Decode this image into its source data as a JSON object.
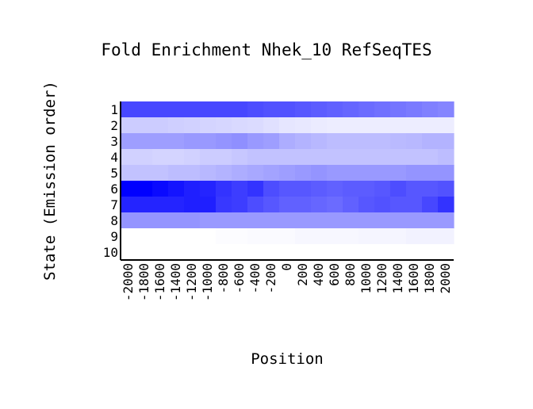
{
  "chart_data": {
    "type": "heatmap",
    "title": "Fold Enrichment Nhek_10 RefSeqTES",
    "xlabel": "Position",
    "ylabel": "State (Emission order)",
    "x": [
      -2000,
      -1800,
      -1600,
      -1400,
      -1200,
      -1000,
      -800,
      -600,
      -400,
      -200,
      0,
      200,
      400,
      600,
      800,
      1000,
      1200,
      1400,
      1600,
      1800,
      2000
    ],
    "x_tick_labels": [
      "-2000",
      "-1800",
      "-1600",
      "-1400",
      "-1200",
      "-1000",
      "-800",
      "-600",
      "-400",
      "-200",
      "0",
      "200",
      "400",
      "600",
      "800",
      "1000",
      "1200",
      "1400",
      "1600",
      "1800",
      "2000"
    ],
    "y": [
      "1",
      "2",
      "3",
      "4",
      "5",
      "6",
      "7",
      "8",
      "9",
      "10"
    ],
    "color_scale": {
      "low": "#ffffff",
      "high": "#0000ff"
    },
    "values": [
      [
        0.72,
        0.72,
        0.72,
        0.72,
        0.72,
        0.72,
        0.72,
        0.72,
        0.7,
        0.68,
        0.68,
        0.66,
        0.64,
        0.62,
        0.6,
        0.58,
        0.56,
        0.54,
        0.52,
        0.5,
        0.48
      ],
      [
        0.2,
        0.2,
        0.2,
        0.19,
        0.18,
        0.17,
        0.16,
        0.15,
        0.14,
        0.12,
        0.1,
        0.09,
        0.08,
        0.07,
        0.07,
        0.07,
        0.07,
        0.07,
        0.07,
        0.07,
        0.07
      ],
      [
        0.38,
        0.38,
        0.38,
        0.38,
        0.4,
        0.4,
        0.42,
        0.44,
        0.4,
        0.38,
        0.32,
        0.3,
        0.28,
        0.26,
        0.26,
        0.26,
        0.26,
        0.27,
        0.28,
        0.3,
        0.3
      ],
      [
        0.18,
        0.18,
        0.17,
        0.17,
        0.18,
        0.2,
        0.2,
        0.22,
        0.24,
        0.24,
        0.24,
        0.24,
        0.24,
        0.24,
        0.24,
        0.24,
        0.24,
        0.24,
        0.24,
        0.24,
        0.26
      ],
      [
        0.24,
        0.24,
        0.24,
        0.26,
        0.26,
        0.28,
        0.3,
        0.32,
        0.34,
        0.36,
        0.38,
        0.4,
        0.42,
        0.4,
        0.4,
        0.4,
        0.4,
        0.4,
        0.42,
        0.42,
        0.42
      ],
      [
        1.0,
        1.0,
        0.96,
        0.92,
        0.88,
        0.86,
        0.8,
        0.76,
        0.8,
        0.7,
        0.66,
        0.66,
        0.64,
        0.62,
        0.64,
        0.64,
        0.66,
        0.7,
        0.66,
        0.66,
        0.68
      ],
      [
        0.86,
        0.86,
        0.86,
        0.86,
        0.88,
        0.88,
        0.78,
        0.76,
        0.7,
        0.66,
        0.62,
        0.62,
        0.6,
        0.58,
        0.62,
        0.66,
        0.68,
        0.66,
        0.66,
        0.72,
        0.8
      ],
      [
        0.42,
        0.42,
        0.42,
        0.42,
        0.42,
        0.4,
        0.4,
        0.4,
        0.4,
        0.4,
        0.4,
        0.4,
        0.4,
        0.4,
        0.4,
        0.4,
        0.4,
        0.4,
        0.4,
        0.4,
        0.4
      ],
      [
        0.0,
        0.0,
        0.0,
        0.0,
        0.0,
        0.0,
        0.01,
        0.01,
        0.02,
        0.02,
        0.02,
        0.03,
        0.03,
        0.03,
        0.03,
        0.04,
        0.04,
        0.04,
        0.05,
        0.05,
        0.05
      ],
      [
        0.0,
        0.0,
        0.0,
        0.0,
        0.0,
        0.0,
        0.0,
        0.0,
        0.0,
        0.0,
        0.0,
        0.0,
        0.0,
        0.0,
        0.0,
        0.0,
        0.0,
        0.0,
        0.0,
        0.0,
        0.0
      ]
    ]
  }
}
